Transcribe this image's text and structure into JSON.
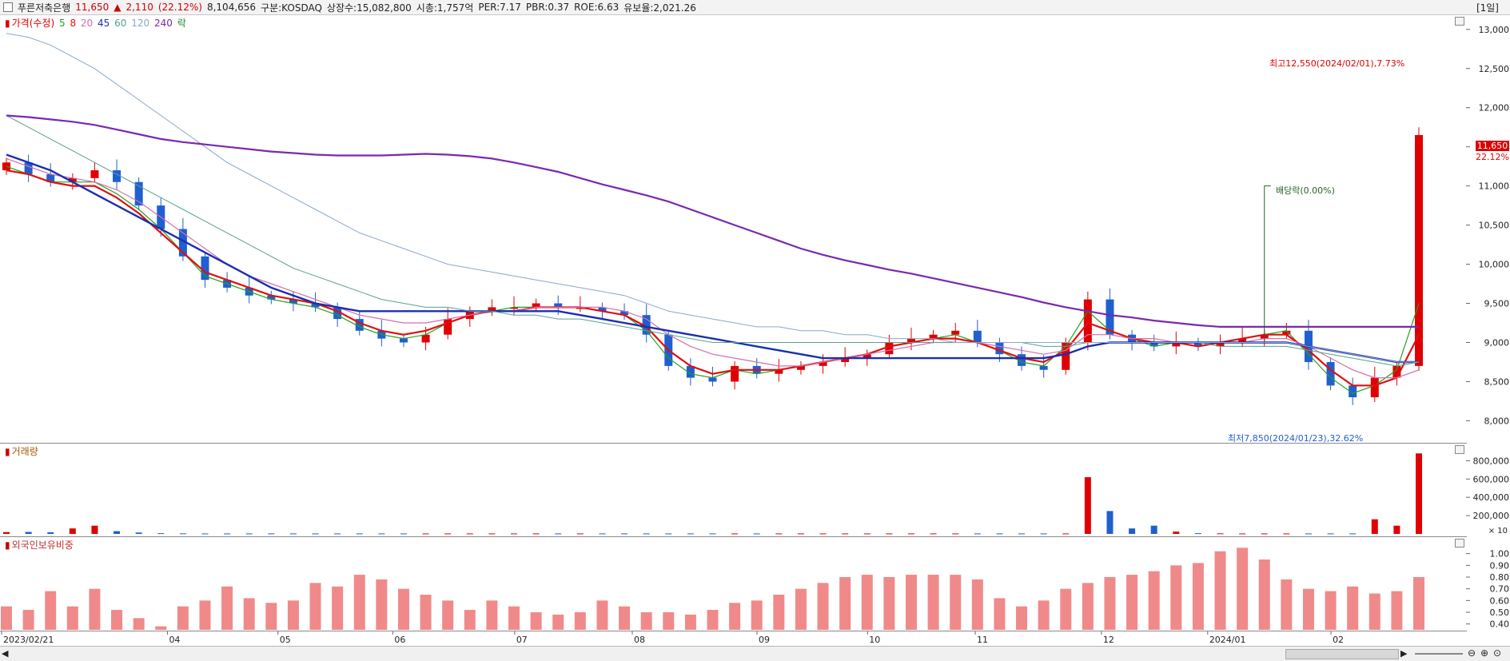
{
  "header": {
    "name": "푸른저축은행",
    "price": "11,650",
    "arrow": "▲",
    "change": "2,110",
    "change_pct": "(22.12%)",
    "volume": "8,104,656",
    "market": "구분:KOSDAQ",
    "shares": "상장수:15,082,800",
    "market_cap": "시총:1,757억",
    "per": "PER:7.17",
    "pbr": "PBR:0.37",
    "roe": "ROE:6.63",
    "reserve": "유보율:2,021.26",
    "period": "[1일]"
  },
  "legend": {
    "price": "가격(수정)",
    "ma5": "5",
    "ma8": "8",
    "ma20": "20",
    "ma45": "45",
    "ma60": "60",
    "ma120": "120",
    "ma240": "240",
    "ex": "락"
  },
  "volume_legend": "거래량",
  "foreign_legend": "외국인보유비중",
  "annotations": {
    "high": "최고12,550(2024/02/01),7.73%",
    "low": "최저7,850(2024/01/23),32.62%",
    "dividend": "배당락(0.00%)"
  },
  "price_tag": {
    "value": "11,650",
    "pct": "22.12%"
  },
  "colors": {
    "up": "#e00000",
    "down": "#1f5fd0",
    "ma5": "#22a022",
    "ma8": "#dd1111",
    "ma20": "#d070b0",
    "ma45": "#1a2fb0",
    "ma60": "#5aa090",
    "ma120": "#8aa8c8",
    "ma240": "#7a28b0"
  },
  "chart_data": [
    {
      "type": "candlestick",
      "title": "",
      "y_ticks": [
        "13,000",
        "12,500",
        "12,000",
        "11,500",
        "11,000",
        "10,500",
        "10,000",
        "9,500",
        "9,000",
        "8,500",
        "8,000"
      ],
      "ylim": [
        7800,
        13100
      ],
      "x_ticks": [
        "2023/02/21",
        "04",
        "05",
        "06",
        "07",
        "08",
        "09",
        "10",
        "11",
        "12",
        "2024/01",
        "02"
      ],
      "series": [
        {
          "name": "가격(수정)",
          "close": [
            11300,
            11150,
            11050,
            11100,
            11200,
            11050,
            10750,
            10450,
            10100,
            9800,
            9700,
            9600,
            9550,
            9500,
            9450,
            9300,
            9150,
            9050,
            9000,
            9100,
            9300,
            9400,
            9450,
            9450,
            9500,
            9450,
            9450,
            9400,
            9350,
            9100,
            8700,
            8550,
            8500,
            8700,
            8600,
            8650,
            8700,
            8750,
            8800,
            8850,
            9000,
            9050,
            9100,
            9150,
            9000,
            8850,
            8700,
            8650,
            9000,
            9550,
            9100,
            9000,
            8950,
            9000,
            8950,
            9000,
            9050,
            9100,
            9150,
            8750,
            8450,
            8300,
            8550,
            8700,
            11650
          ]
        },
        {
          "name": "5",
          "values": [
            11250,
            11150,
            11050,
            11050,
            11050,
            10900,
            10700,
            10450,
            10150,
            9850,
            9750,
            9650,
            9550,
            9500,
            9450,
            9350,
            9200,
            9100,
            9050,
            9100,
            9250,
            9350,
            9400,
            9450,
            9450,
            9450,
            9450,
            9400,
            9350,
            9150,
            8800,
            8600,
            8550,
            8650,
            8600,
            8650,
            8700,
            8750,
            8800,
            8850,
            8950,
            9000,
            9050,
            9100,
            9000,
            8900,
            8750,
            8700,
            8950,
            9400,
            9150,
            9050,
            8950,
            9000,
            8950,
            9000,
            9050,
            9100,
            9150,
            8850,
            8550,
            8350,
            8450,
            8650,
            9500
          ]
        },
        {
          "name": "8",
          "values": [
            11200,
            11150,
            11050,
            11000,
            11000,
            10850,
            10650,
            10400,
            10150,
            9900,
            9800,
            9700,
            9600,
            9550,
            9500,
            9400,
            9250,
            9150,
            9100,
            9150,
            9250,
            9350,
            9400,
            9400,
            9450,
            9450,
            9450,
            9400,
            9350,
            9200,
            8900,
            8700,
            8600,
            8650,
            8650,
            8650,
            8700,
            8750,
            8800,
            8850,
            8950,
            9000,
            9050,
            9050,
            9000,
            8900,
            8800,
            8750,
            8900,
            9250,
            9150,
            9050,
            9000,
            9000,
            8950,
            9000,
            9050,
            9100,
            9100,
            8900,
            8650,
            8450,
            8450,
            8550,
            9100
          ]
        },
        {
          "name": "20",
          "values": [
            11350,
            11250,
            11150,
            11100,
            11050,
            10950,
            10800,
            10600,
            10400,
            10200,
            10000,
            9850,
            9750,
            9650,
            9550,
            9450,
            9350,
            9300,
            9250,
            9250,
            9300,
            9350,
            9400,
            9400,
            9450,
            9450,
            9450,
            9450,
            9400,
            9300,
            9100,
            8950,
            8850,
            8800,
            8750,
            8700,
            8700,
            8750,
            8800,
            8850,
            8900,
            8950,
            9000,
            9000,
            9000,
            8950,
            8900,
            8850,
            8900,
            9100,
            9100,
            9050,
            9050,
            9000,
            9000,
            9000,
            9000,
            9050,
            9050,
            8950,
            8800,
            8650,
            8550,
            8550,
            8650
          ]
        },
        {
          "name": "45",
          "values": [
            11400,
            11300,
            11200,
            11050,
            10900,
            10750,
            10600,
            10450,
            10300,
            10150,
            10000,
            9850,
            9700,
            9600,
            9500,
            9450,
            9400,
            9400,
            9400,
            9400,
            9400,
            9400,
            9400,
            9400,
            9400,
            9400,
            9350,
            9300,
            9250,
            9200,
            9150,
            9100,
            9050,
            9000,
            8950,
            8900,
            8850,
            8800,
            8800,
            8800,
            8800,
            8800,
            8800,
            8800,
            8800,
            8800,
            8800,
            8800,
            8850,
            8950,
            9000,
            9000,
            9000,
            9000,
            9000,
            9000,
            9000,
            9000,
            9000,
            8950,
            8900,
            8850,
            8800,
            8750,
            8750
          ]
        },
        {
          "name": "60",
          "values": [
            11900,
            11750,
            11600,
            11450,
            11300,
            11150,
            11000,
            10850,
            10700,
            10550,
            10400,
            10250,
            10100,
            9950,
            9850,
            9750,
            9650,
            9550,
            9500,
            9450,
            9450,
            9400,
            9400,
            9350,
            9350,
            9300,
            9300,
            9250,
            9200,
            9150,
            9100,
            9050,
            9000,
            9000,
            9000,
            9000,
            9000,
            9000,
            9000,
            9000,
            9000,
            9000,
            9000,
            9000,
            9000,
            9000,
            9000,
            8950,
            8950,
            9000,
            9000,
            9000,
            9000,
            9000,
            9000,
            8950,
            8950,
            8950,
            8950,
            8900,
            8850,
            8800,
            8750,
            8700,
            8750
          ]
        },
        {
          "name": "120",
          "values": [
            12950,
            12900,
            12800,
            12650,
            12500,
            12300,
            12100,
            11900,
            11700,
            11500,
            11300,
            11150,
            11000,
            10850,
            10700,
            10550,
            10400,
            10300,
            10200,
            10100,
            10000,
            9950,
            9900,
            9850,
            9800,
            9750,
            9700,
            9650,
            9600,
            9500,
            9400,
            9350,
            9300,
            9250,
            9200,
            9200,
            9150,
            9150,
            9100,
            9100,
            9050,
            9050,
            9050,
            9000,
            9000,
            9000,
            9000,
            9000,
            9000,
            9000,
            9000,
            9000,
            9000,
            9000,
            9000,
            9000,
            9000,
            9000,
            9000,
            8950,
            8900,
            8850,
            8800,
            8750,
            8750
          ]
        },
        {
          "name": "240",
          "values": [
            11900,
            11880,
            11850,
            11820,
            11780,
            11720,
            11660,
            11600,
            11560,
            11530,
            11500,
            11470,
            11440,
            11420,
            11400,
            11390,
            11390,
            11390,
            11400,
            11410,
            11400,
            11380,
            11350,
            11300,
            11240,
            11180,
            11100,
            11020,
            10950,
            10880,
            10800,
            10700,
            10600,
            10500,
            10400,
            10300,
            10200,
            10120,
            10050,
            9990,
            9930,
            9880,
            9820,
            9760,
            9700,
            9640,
            9580,
            9510,
            9450,
            9400,
            9350,
            9320,
            9280,
            9250,
            9220,
            9200,
            9200,
            9200,
            9200,
            9200,
            9200,
            9200,
            9200,
            9200,
            9200
          ]
        }
      ]
    },
    {
      "type": "bar",
      "title": "거래량",
      "y_ticks": [
        "800,000",
        "600,000",
        "400,000",
        "200,000"
      ],
      "unit": "× 10",
      "ylim": [
        0,
        900000
      ],
      "series": [
        {
          "name": "거래량",
          "values": [
            20000,
            22000,
            18000,
            60000,
            90000,
            30000,
            15000,
            8000,
            6000,
            5000,
            5000,
            5000,
            5000,
            5000,
            5000,
            5000,
            5000,
            5000,
            5000,
            5000,
            5000,
            5000,
            5000,
            5000,
            5000,
            5000,
            5000,
            5000,
            5000,
            5000,
            5000,
            5000,
            5000,
            5000,
            5000,
            5000,
            5000,
            5000,
            5000,
            5000,
            5000,
            5000,
            5000,
            5000,
            5000,
            5000,
            5000,
            5000,
            5000,
            620000,
            250000,
            60000,
            90000,
            25000,
            8000,
            6000,
            5000,
            5000,
            5000,
            5000,
            5000,
            5000,
            160000,
            90000,
            880000
          ]
        }
      ]
    },
    {
      "type": "bar",
      "title": "외국인보유비중",
      "y_ticks": [
        "1.00",
        "0.90",
        "0.80",
        "0.70",
        "0.60",
        "0.50",
        "0.40"
      ],
      "ylim": [
        0.35,
        1.1
      ],
      "series": [
        {
          "name": "외국인보유비중",
          "values": [
            0.55,
            0.52,
            0.68,
            0.55,
            0.7,
            0.52,
            0.45,
            0.38,
            0.55,
            0.6,
            0.72,
            0.62,
            0.58,
            0.6,
            0.75,
            0.72,
            0.82,
            0.78,
            0.7,
            0.65,
            0.6,
            0.52,
            0.6,
            0.55,
            0.5,
            0.48,
            0.5,
            0.6,
            0.55,
            0.5,
            0.5,
            0.48,
            0.52,
            0.58,
            0.6,
            0.65,
            0.7,
            0.75,
            0.8,
            0.82,
            0.8,
            0.82,
            0.82,
            0.82,
            0.78,
            0.62,
            0.55,
            0.6,
            0.7,
            0.75,
            0.8,
            0.82,
            0.85,
            0.9,
            0.92,
            1.02,
            1.05,
            0.95,
            0.78,
            0.7,
            0.68,
            0.72,
            0.66,
            0.68,
            0.8
          ]
        }
      ]
    }
  ]
}
